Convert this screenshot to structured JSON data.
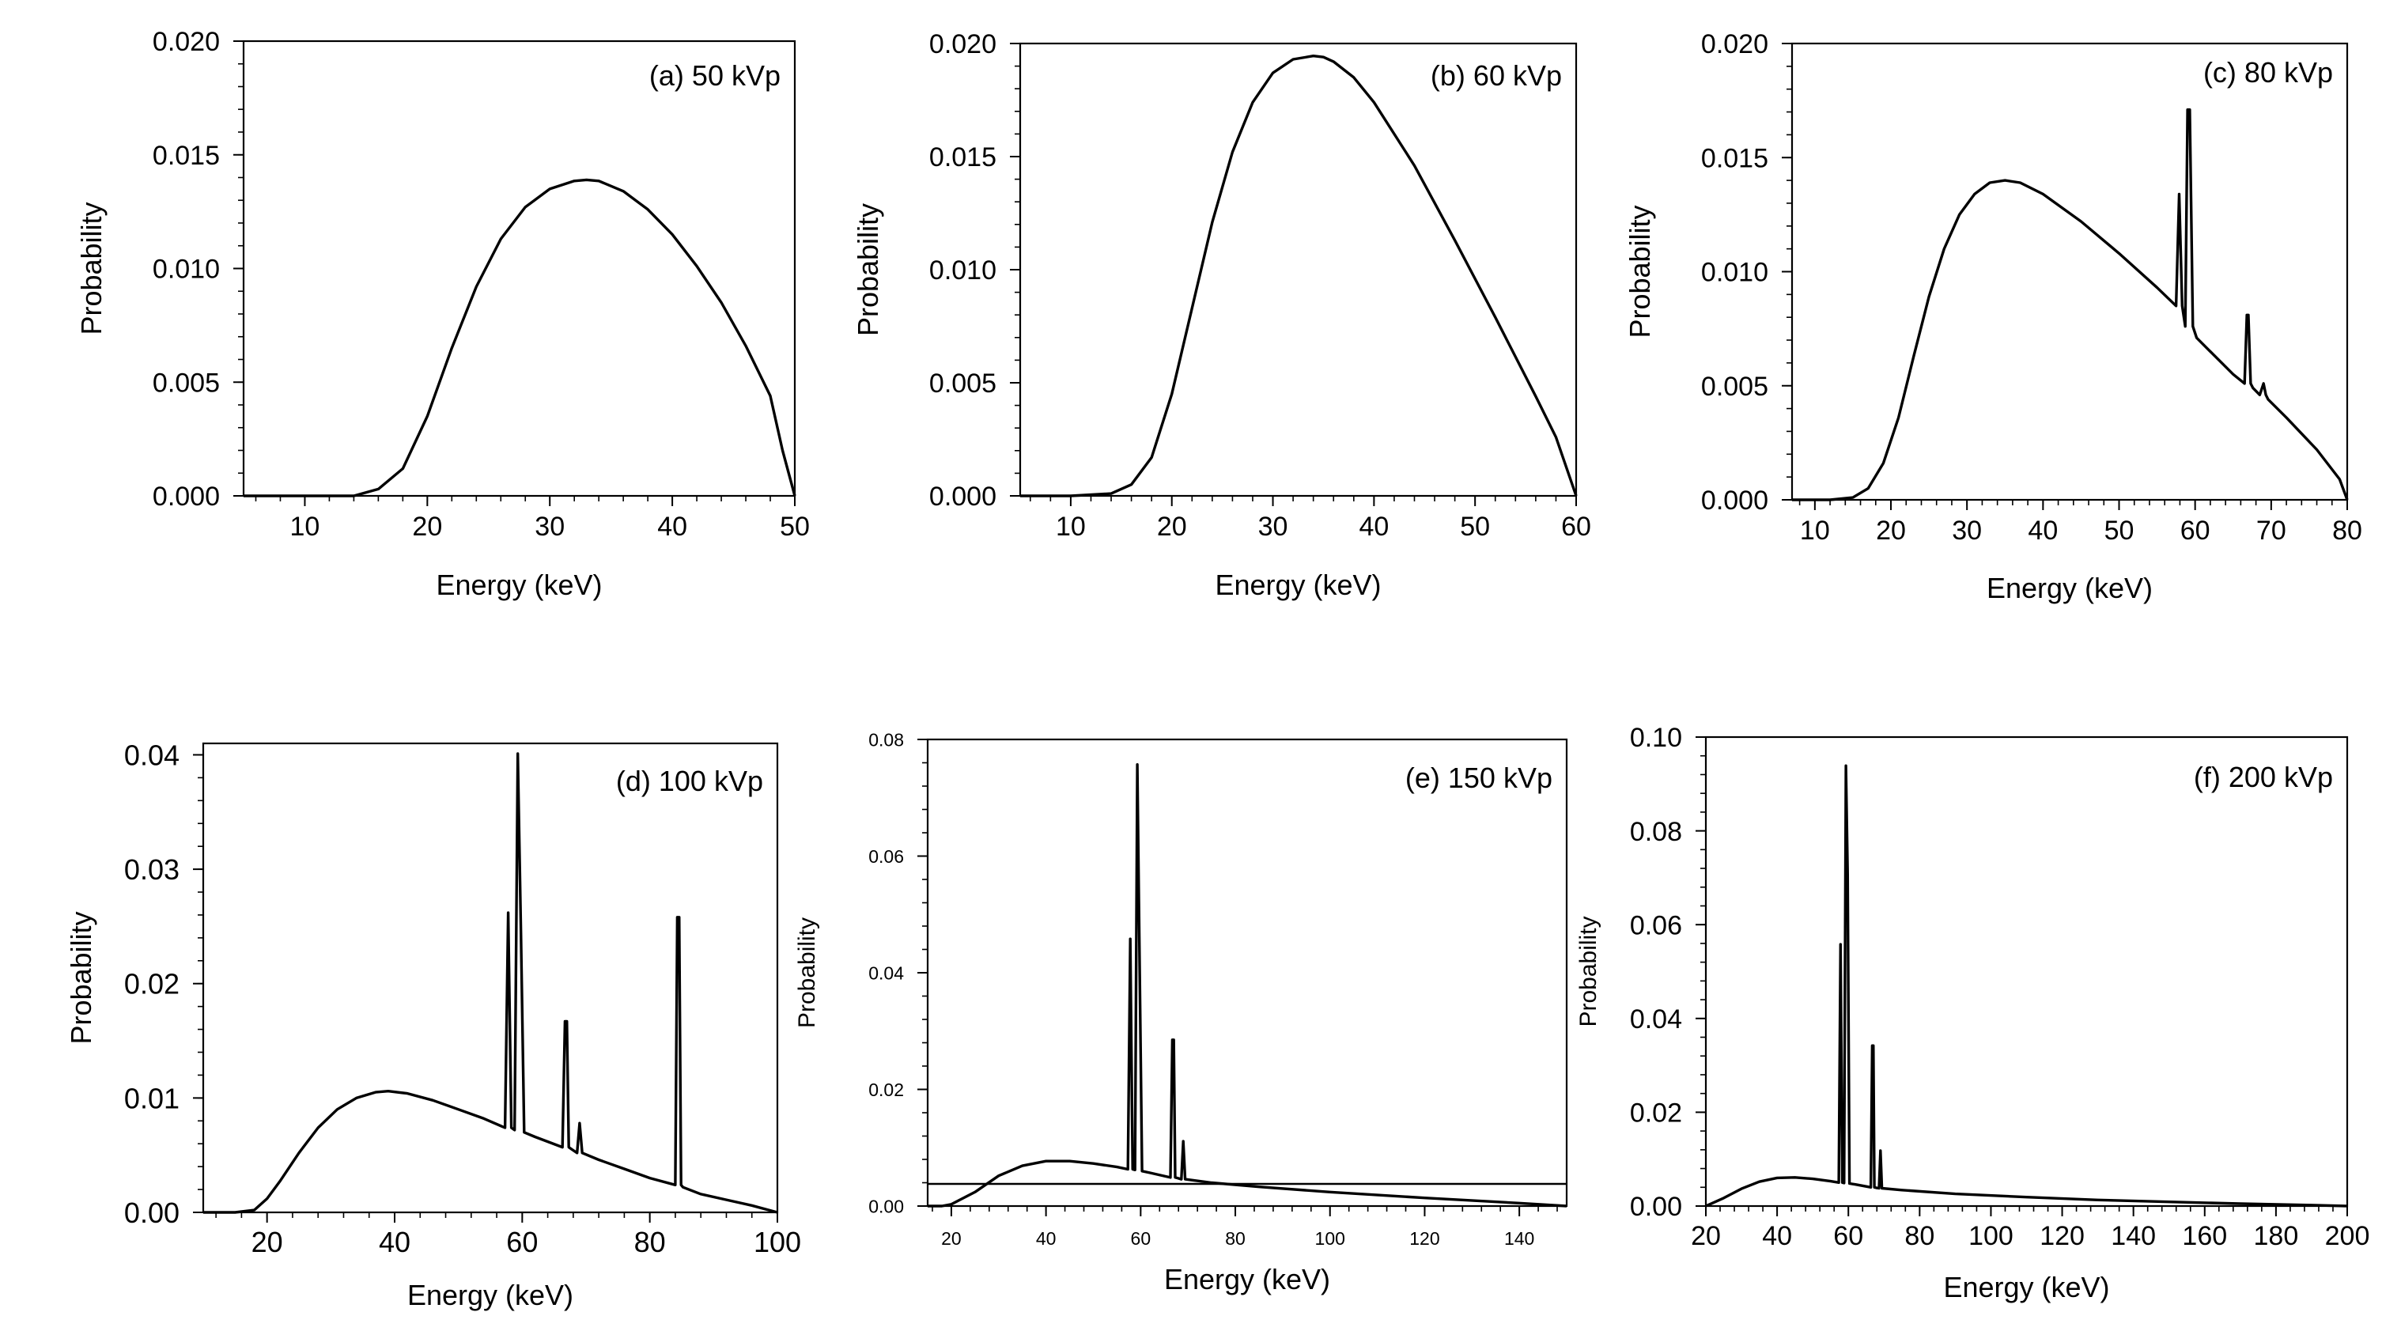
{
  "chart_data": [
    {
      "type": "line",
      "annotation": "(a) 50 kVp",
      "xlabel": "Energy (keV)",
      "ylabel": "Probability",
      "xlim": [
        5,
        50
      ],
      "ylim": [
        0,
        0.02
      ],
      "xticks": [
        10,
        20,
        30,
        40,
        50
      ],
      "xtick_labels": [
        "10",
        "20",
        "30",
        "40",
        "50"
      ],
      "yticks": [
        0,
        0.005,
        0.01,
        0.015,
        0.02
      ],
      "ytick_labels": [
        "0.000",
        "0.005",
        "0.010",
        "0.015",
        "0.020"
      ],
      "series": [
        {
          "x": [
            5,
            10,
            14,
            16,
            18,
            20,
            22,
            24,
            26,
            28,
            30,
            32,
            33,
            34,
            36,
            38,
            40,
            42,
            44,
            46,
            48,
            49,
            50
          ],
          "y": [
            0,
            0,
            0,
            0.0003,
            0.0012,
            0.0035,
            0.0065,
            0.0092,
            0.0113,
            0.0127,
            0.0135,
            0.01385,
            0.0139,
            0.01385,
            0.0134,
            0.0126,
            0.0115,
            0.0101,
            0.0085,
            0.0066,
            0.0044,
            0.002,
            0
          ]
        }
      ]
    },
    {
      "type": "line",
      "annotation": "(b) 60 kVp",
      "xlabel": "Energy (keV)",
      "ylabel": "Probability",
      "xlim": [
        5,
        60
      ],
      "ylim": [
        0,
        0.02
      ],
      "xticks": [
        10,
        20,
        30,
        40,
        50,
        60
      ],
      "xtick_labels": [
        "10",
        "20",
        "30",
        "40",
        "50",
        "60"
      ],
      "yticks": [
        0,
        0.005,
        0.01,
        0.015,
        0.02
      ],
      "ytick_labels": [
        "0.000",
        "0.005",
        "0.010",
        "0.015",
        "0.020"
      ],
      "series": [
        {
          "x": [
            5,
            10,
            14,
            16,
            18,
            20,
            22,
            24,
            26,
            28,
            30,
            32,
            34,
            35,
            36,
            38,
            40,
            44,
            48,
            52,
            56,
            58,
            60
          ],
          "y": [
            0,
            0,
            0.0001,
            0.0005,
            0.0017,
            0.0045,
            0.0083,
            0.0121,
            0.0152,
            0.0174,
            0.0187,
            0.0193,
            0.01945,
            0.0194,
            0.0192,
            0.0185,
            0.0174,
            0.0146,
            0.0113,
            0.0079,
            0.0044,
            0.0026,
            0
          ]
        }
      ]
    },
    {
      "type": "line",
      "annotation": "(c) 80 kVp",
      "xlabel": "Energy (keV)",
      "ylabel": "Probability",
      "xlim": [
        7,
        80
      ],
      "ylim": [
        0,
        0.02
      ],
      "xticks": [
        10,
        20,
        30,
        40,
        50,
        60,
        70,
        80
      ],
      "xtick_labels": [
        "10",
        "20",
        "30",
        "40",
        "50",
        "60",
        "70",
        "80"
      ],
      "yticks": [
        0,
        0.005,
        0.01,
        0.015,
        0.02
      ],
      "ytick_labels": [
        "0.000",
        "0.005",
        "0.010",
        "0.015",
        "0.020"
      ],
      "series": [
        {
          "x": [
            7,
            12,
            15,
            17,
            19,
            21,
            23,
            25,
            27,
            29,
            31,
            33,
            35,
            37,
            40,
            45,
            50,
            55,
            57.5,
            57.9,
            58.3,
            58.7,
            59.0,
            59.3,
            59.7,
            60.2,
            62,
            65,
            66.5,
            66.8,
            67.0,
            67.3,
            67.6,
            68.5,
            69.0,
            69.3,
            69.6,
            72,
            76,
            79,
            80
          ],
          "y": [
            0,
            0,
            0.0001,
            0.0005,
            0.0016,
            0.0036,
            0.0063,
            0.0089,
            0.011,
            0.0125,
            0.0134,
            0.0139,
            0.014,
            0.0139,
            0.0134,
            0.0122,
            0.0108,
            0.0093,
            0.0085,
            0.0134,
            0.0085,
            0.0076,
            0.0171,
            0.0171,
            0.0076,
            0.0071,
            0.0065,
            0.0055,
            0.0051,
            0.0081,
            0.0081,
            0.0051,
            0.0049,
            0.0046,
            0.0051,
            0.0046,
            0.0044,
            0.0036,
            0.0022,
            0.0009,
            0
          ]
        }
      ]
    },
    {
      "type": "line",
      "annotation": "(d) 100 kVp",
      "xlabel": "Energy (keV)",
      "ylabel": "Probability",
      "xlim": [
        10,
        100
      ],
      "ylim": [
        0,
        0.041
      ],
      "xticks": [
        20,
        40,
        60,
        80,
        100
      ],
      "xtick_labels": [
        "20",
        "40",
        "60",
        "80",
        "100"
      ],
      "yticks": [
        0,
        0.01,
        0.02,
        0.03,
        0.04
      ],
      "ytick_labels": [
        "0.00",
        "0.01",
        "0.02",
        "0.03",
        "0.04"
      ],
      "series": [
        {
          "x": [
            10,
            15,
            18,
            20,
            22,
            25,
            28,
            31,
            34,
            37,
            39,
            42,
            46,
            50,
            54,
            57.3,
            57.8,
            58.3,
            58.8,
            59.3,
            59.8,
            60.3,
            62,
            66.3,
            66.7,
            67.0,
            67.3,
            67.8,
            68.6,
            69.0,
            69.4,
            72,
            76,
            80,
            84.0,
            84.3,
            84.6,
            84.9,
            85.2,
            88,
            92,
            96,
            100
          ],
          "y": [
            0,
            0,
            0.0002,
            0.0012,
            0.0027,
            0.0052,
            0.0074,
            0.009,
            0.01,
            0.0105,
            0.0106,
            0.0104,
            0.0098,
            0.009,
            0.0082,
            0.0074,
            0.0262,
            0.0074,
            0.0072,
            0.0401,
            0.0245,
            0.007,
            0.0066,
            0.0057,
            0.0167,
            0.0167,
            0.0057,
            0.0055,
            0.0052,
            0.0078,
            0.0052,
            0.0046,
            0.0038,
            0.003,
            0.0024,
            0.0258,
            0.0258,
            0.0024,
            0.0022,
            0.0016,
            0.0011,
            0.0006,
            0
          ]
        }
      ]
    },
    {
      "type": "line",
      "annotation": "(e) 150 kVp",
      "xlabel": "Energy (keV)",
      "ylabel": "Probability",
      "xlim": [
        15,
        150
      ],
      "ylim": [
        0,
        0.08
      ],
      "xticks": [
        20,
        40,
        60,
        80,
        100,
        120,
        140
      ],
      "xtick_labels": [
        "20",
        "40",
        "60",
        "80",
        "100",
        "120",
        "140"
      ],
      "yticks": [
        0,
        0.02,
        0.04,
        0.06,
        0.08
      ],
      "ytick_labels": [
        "0.00",
        "0.02",
        "0.04",
        "0.06",
        "0.08"
      ],
      "series": [
        {
          "x": [
            15,
            18,
            20,
            25,
            30,
            35,
            40,
            45,
            50,
            55,
            57.3,
            57.8,
            58.3,
            58.8,
            59.3,
            59.8,
            60.3,
            62,
            66.3,
            66.7,
            67.0,
            67.3,
            67.8,
            68.6,
            69.0,
            69.4,
            75,
            85,
            100,
            120,
            140,
            150
          ],
          "y": [
            0,
            0,
            0.0003,
            0.0024,
            0.0052,
            0.0069,
            0.0077,
            0.0077,
            0.0073,
            0.0067,
            0.0063,
            0.0458,
            0.0063,
            0.0062,
            0.0757,
            0.0404,
            0.006,
            0.0057,
            0.0049,
            0.0285,
            0.0285,
            0.0049,
            0.0048,
            0.0046,
            0.0111,
            0.0046,
            0.004,
            0.0033,
            0.0024,
            0.0014,
            0.0005,
            0
          ]
        },
        {
          "x": [
            15,
            150
          ],
          "y": [
            0.0038,
            0.0038
          ]
        }
      ]
    },
    {
      "type": "line",
      "annotation": "(f) 200 kVp",
      "xlabel": "Energy (keV)",
      "ylabel": "Probability",
      "xlim": [
        20,
        200
      ],
      "ylim": [
        0,
        0.1
      ],
      "xticks": [
        20,
        40,
        60,
        80,
        100,
        120,
        140,
        160,
        180,
        200
      ],
      "xtick_labels": [
        "20",
        "40",
        "60",
        "80",
        "100",
        "120",
        "140",
        "160",
        "180",
        "200"
      ],
      "yticks": [
        0,
        0.02,
        0.04,
        0.06,
        0.08,
        0.1
      ],
      "ytick_labels": [
        "0.00",
        "0.02",
        "0.04",
        "0.06",
        "0.08",
        "0.10"
      ],
      "series": [
        {
          "x": [
            20,
            25,
            30,
            35,
            40,
            45,
            50,
            55,
            57.3,
            57.8,
            58.3,
            58.8,
            59.3,
            59.8,
            60.3,
            62,
            66.3,
            66.7,
            67.0,
            67.3,
            67.8,
            68.6,
            69.0,
            69.4,
            75,
            90,
            110,
            130,
            150,
            170,
            190,
            200
          ],
          "y": [
            0,
            0.0017,
            0.0037,
            0.0052,
            0.006,
            0.0061,
            0.0058,
            0.0053,
            0.005,
            0.0558,
            0.005,
            0.0049,
            0.0939,
            0.0707,
            0.0048,
            0.0046,
            0.004,
            0.0342,
            0.0342,
            0.004,
            0.0039,
            0.0038,
            0.0118,
            0.0038,
            0.0034,
            0.0026,
            0.0019,
            0.0013,
            0.0009,
            0.0005,
            0.0002,
            0
          ]
        }
      ]
    }
  ]
}
